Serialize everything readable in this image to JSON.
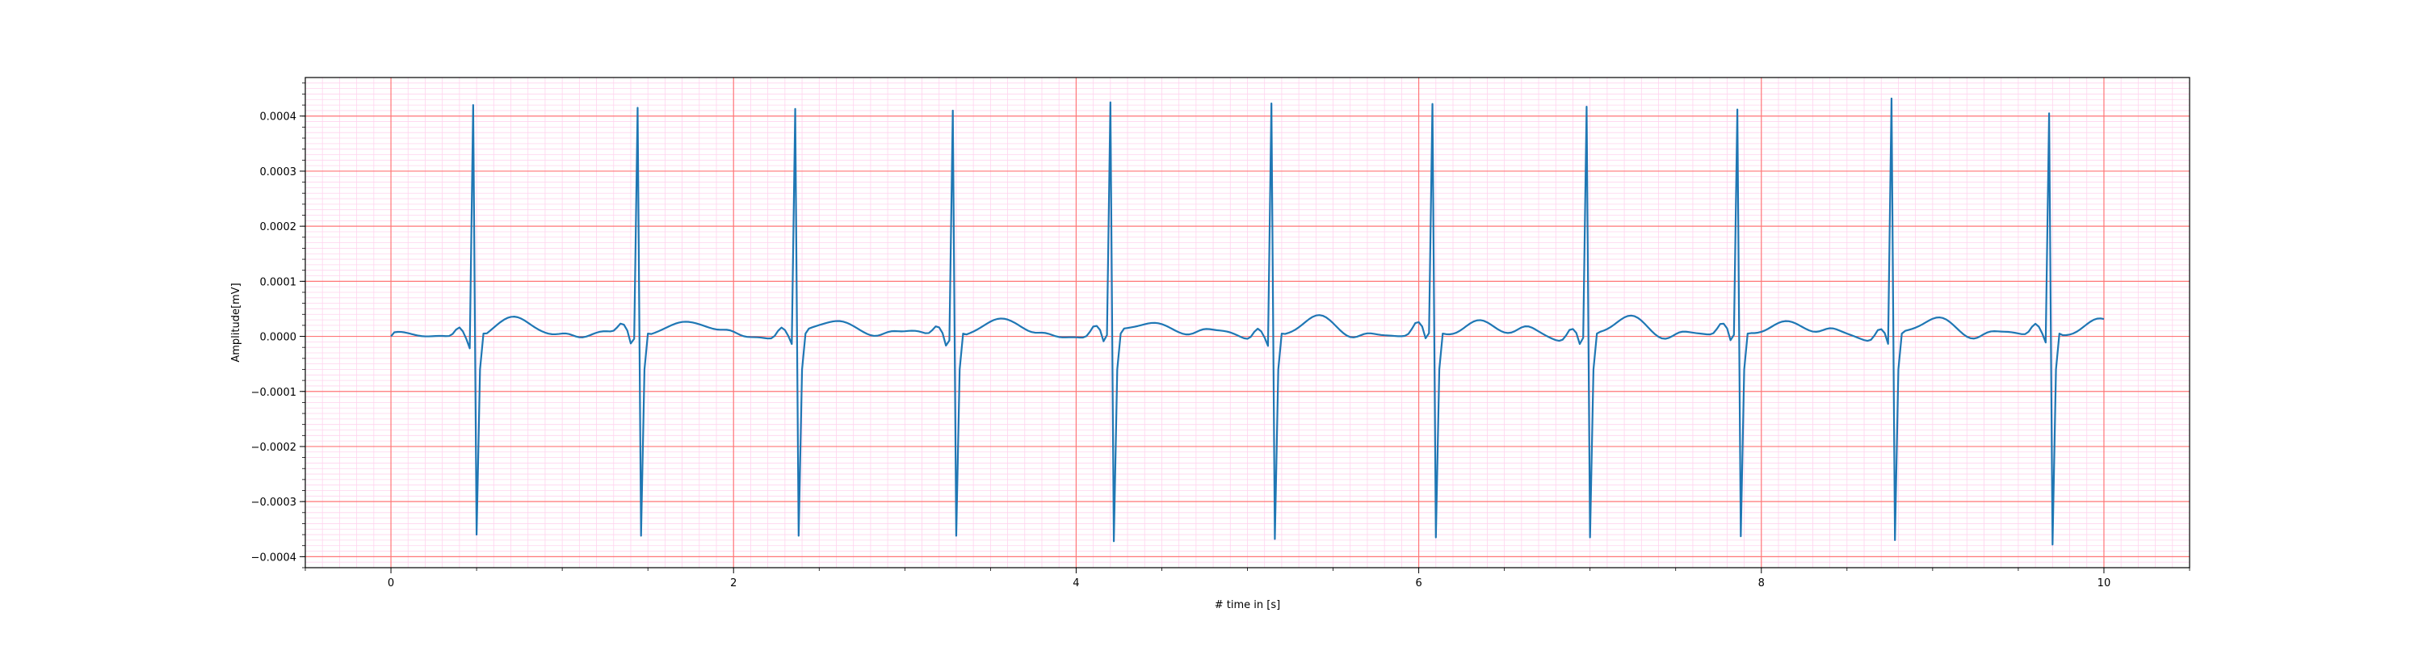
{
  "chart_data": {
    "type": "line",
    "xlabel": "# time in [s]",
    "ylabel": "Amplitude[mV]",
    "xlim": [
      -0.5,
      10.5
    ],
    "ylim": [
      -0.00042,
      0.00047
    ],
    "x_ticks": [
      0,
      2,
      4,
      6,
      8,
      10
    ],
    "x_tick_labels": [
      "0",
      "2",
      "4",
      "6",
      "8",
      "10"
    ],
    "y_ticks": [
      -0.0004,
      -0.0003,
      -0.0002,
      -0.0001,
      0.0,
      0.0001,
      0.0002,
      0.0003,
      0.0004
    ],
    "y_tick_labels": [
      "−0.0004",
      "−0.0003",
      "−0.0002",
      "−0.0001",
      "0.0000",
      "0.0001",
      "0.0002",
      "0.0003",
      "0.0004"
    ],
    "grid": {
      "major": true,
      "minor": true,
      "major_color": "#ff7777",
      "minor_color": "#ffd4ee"
    },
    "line_color": "#1f77b4",
    "signal": {
      "sample_interval_s": 0.02,
      "duration_s": 10,
      "r_peaks": [
        {
          "t": 0.48,
          "peak": 0.00042,
          "trough": -0.00036
        },
        {
          "t": 1.43,
          "peak": 0.000415,
          "trough": -0.000362
        },
        {
          "t": 2.36,
          "peak": 0.000413,
          "trough": -0.000362
        },
        {
          "t": 3.27,
          "peak": 0.00041,
          "trough": -0.000362
        },
        {
          "t": 4.19,
          "peak": 0.000425,
          "trough": -0.000372
        },
        {
          "t": 5.14,
          "peak": 0.000423,
          "trough": -0.000368
        },
        {
          "t": 6.07,
          "peak": 0.000422,
          "trough": -0.000365
        },
        {
          "t": 6.97,
          "peak": 0.000417,
          "trough": -0.000365
        },
        {
          "t": 7.85,
          "peak": 0.000412,
          "trough": -0.000363
        },
        {
          "t": 8.77,
          "peak": 0.000432,
          "trough": -0.00037
        },
        {
          "t": 9.68,
          "peak": 0.000405,
          "trough": -0.000378
        }
      ],
      "t_wave_amplitude": 3.2e-05,
      "p_wave_amplitude": 2.2e-05
    }
  }
}
